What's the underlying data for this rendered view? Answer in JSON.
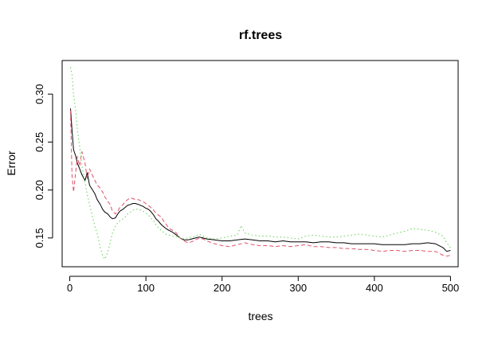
{
  "chart_data": {
    "type": "line",
    "title": "rf.trees",
    "xlabel": "trees",
    "ylabel": "Error",
    "xlim": [
      -10,
      510
    ],
    "ylim": [
      0.12,
      0.335
    ],
    "xticks": [
      0,
      100,
      200,
      300,
      400,
      500
    ],
    "yticks": [
      0.15,
      0.2,
      0.25,
      0.3
    ],
    "ytick_labels": [
      "0.15",
      "0.20",
      "0.25",
      "0.30"
    ],
    "grid": false,
    "legend": "none",
    "series": [
      {
        "color": "#000000",
        "line_style": "solid",
        "points": [
          [
            1,
            0.285
          ],
          [
            3,
            0.262
          ],
          [
            5,
            0.242
          ],
          [
            8,
            0.235
          ],
          [
            10,
            0.228
          ],
          [
            13,
            0.222
          ],
          [
            16,
            0.216
          ],
          [
            20,
            0.21
          ],
          [
            23,
            0.218
          ],
          [
            26,
            0.205
          ],
          [
            30,
            0.2
          ],
          [
            33,
            0.196
          ],
          [
            36,
            0.19
          ],
          [
            40,
            0.185
          ],
          [
            43,
            0.18
          ],
          [
            46,
            0.177
          ],
          [
            50,
            0.175
          ],
          [
            53,
            0.172
          ],
          [
            56,
            0.17
          ],
          [
            60,
            0.171
          ],
          [
            63,
            0.175
          ],
          [
            66,
            0.178
          ],
          [
            70,
            0.18
          ],
          [
            73,
            0.182
          ],
          [
            76,
            0.184
          ],
          [
            80,
            0.185
          ],
          [
            83,
            0.186
          ],
          [
            86,
            0.186
          ],
          [
            90,
            0.185
          ],
          [
            93,
            0.184
          ],
          [
            96,
            0.183
          ],
          [
            100,
            0.181
          ],
          [
            103,
            0.18
          ],
          [
            106,
            0.178
          ],
          [
            110,
            0.174
          ],
          [
            113,
            0.17
          ],
          [
            116,
            0.168
          ],
          [
            120,
            0.164
          ],
          [
            123,
            0.162
          ],
          [
            126,
            0.16
          ],
          [
            130,
            0.158
          ],
          [
            135,
            0.156
          ],
          [
            140,
            0.153
          ],
          [
            145,
            0.15
          ],
          [
            150,
            0.148
          ],
          [
            155,
            0.148
          ],
          [
            160,
            0.149
          ],
          [
            165,
            0.15
          ],
          [
            170,
            0.151
          ],
          [
            175,
            0.15
          ],
          [
            180,
            0.149
          ],
          [
            190,
            0.148
          ],
          [
            200,
            0.147
          ],
          [
            210,
            0.147
          ],
          [
            220,
            0.148
          ],
          [
            230,
            0.149
          ],
          [
            240,
            0.148
          ],
          [
            250,
            0.147
          ],
          [
            260,
            0.147
          ],
          [
            270,
            0.146
          ],
          [
            280,
            0.147
          ],
          [
            290,
            0.146
          ],
          [
            300,
            0.146
          ],
          [
            310,
            0.146
          ],
          [
            320,
            0.145
          ],
          [
            330,
            0.146
          ],
          [
            340,
            0.146
          ],
          [
            350,
            0.145
          ],
          [
            360,
            0.145
          ],
          [
            370,
            0.144
          ],
          [
            380,
            0.144
          ],
          [
            390,
            0.144
          ],
          [
            400,
            0.144
          ],
          [
            410,
            0.143
          ],
          [
            420,
            0.143
          ],
          [
            430,
            0.143
          ],
          [
            440,
            0.143
          ],
          [
            450,
            0.144
          ],
          [
            460,
            0.144
          ],
          [
            470,
            0.145
          ],
          [
            480,
            0.144
          ],
          [
            490,
            0.14
          ],
          [
            495,
            0.136
          ],
          [
            500,
            0.137
          ]
        ]
      },
      {
        "color": "#DF536B",
        "line_style": "dashed",
        "points": [
          [
            1,
            0.283
          ],
          [
            3,
            0.215
          ],
          [
            5,
            0.198
          ],
          [
            8,
            0.22
          ],
          [
            10,
            0.235
          ],
          [
            13,
            0.225
          ],
          [
            16,
            0.24
          ],
          [
            20,
            0.228
          ],
          [
            23,
            0.212
          ],
          [
            26,
            0.222
          ],
          [
            30,
            0.215
          ],
          [
            33,
            0.21
          ],
          [
            36,
            0.205
          ],
          [
            40,
            0.202
          ],
          [
            43,
            0.198
          ],
          [
            46,
            0.193
          ],
          [
            50,
            0.188
          ],
          [
            53,
            0.185
          ],
          [
            56,
            0.178
          ],
          [
            60,
            0.175
          ],
          [
            63,
            0.178
          ],
          [
            66,
            0.182
          ],
          [
            70,
            0.185
          ],
          [
            73,
            0.188
          ],
          [
            76,
            0.19
          ],
          [
            80,
            0.192
          ],
          [
            83,
            0.191
          ],
          [
            86,
            0.19
          ],
          [
            90,
            0.19
          ],
          [
            93,
            0.189
          ],
          [
            96,
            0.188
          ],
          [
            100,
            0.186
          ],
          [
            103,
            0.184
          ],
          [
            106,
            0.182
          ],
          [
            110,
            0.179
          ],
          [
            113,
            0.176
          ],
          [
            116,
            0.174
          ],
          [
            120,
            0.172
          ],
          [
            123,
            0.168
          ],
          [
            126,
            0.165
          ],
          [
            130,
            0.16
          ],
          [
            135,
            0.158
          ],
          [
            140,
            0.155
          ],
          [
            145,
            0.15
          ],
          [
            150,
            0.147
          ],
          [
            155,
            0.145
          ],
          [
            160,
            0.146
          ],
          [
            165,
            0.148
          ],
          [
            170,
            0.15
          ],
          [
            175,
            0.149
          ],
          [
            180,
            0.147
          ],
          [
            190,
            0.144
          ],
          [
            200,
            0.142
          ],
          [
            210,
            0.141
          ],
          [
            220,
            0.143
          ],
          [
            230,
            0.145
          ],
          [
            240,
            0.143
          ],
          [
            250,
            0.142
          ],
          [
            260,
            0.142
          ],
          [
            270,
            0.141
          ],
          [
            280,
            0.142
          ],
          [
            290,
            0.141
          ],
          [
            300,
            0.142
          ],
          [
            310,
            0.143
          ],
          [
            320,
            0.141
          ],
          [
            330,
            0.141
          ],
          [
            340,
            0.14
          ],
          [
            350,
            0.14
          ],
          [
            360,
            0.139
          ],
          [
            370,
            0.139
          ],
          [
            380,
            0.138
          ],
          [
            390,
            0.138
          ],
          [
            400,
            0.137
          ],
          [
            410,
            0.136
          ],
          [
            420,
            0.137
          ],
          [
            430,
            0.137
          ],
          [
            440,
            0.136
          ],
          [
            450,
            0.137
          ],
          [
            460,
            0.137
          ],
          [
            470,
            0.136
          ],
          [
            480,
            0.136
          ],
          [
            490,
            0.132
          ],
          [
            495,
            0.131
          ],
          [
            500,
            0.132
          ]
        ]
      },
      {
        "color": "#61D04F",
        "line_style": "dotted",
        "points": [
          [
            1,
            0.328
          ],
          [
            3,
            0.32
          ],
          [
            5,
            0.3
          ],
          [
            8,
            0.282
          ],
          [
            10,
            0.262
          ],
          [
            13,
            0.245
          ],
          [
            16,
            0.225
          ],
          [
            20,
            0.208
          ],
          [
            23,
            0.195
          ],
          [
            26,
            0.185
          ],
          [
            30,
            0.172
          ],
          [
            33,
            0.162
          ],
          [
            36,
            0.155
          ],
          [
            40,
            0.14
          ],
          [
            43,
            0.132
          ],
          [
            46,
            0.128
          ],
          [
            50,
            0.135
          ],
          [
            53,
            0.145
          ],
          [
            56,
            0.155
          ],
          [
            60,
            0.162
          ],
          [
            63,
            0.166
          ],
          [
            66,
            0.168
          ],
          [
            70,
            0.17
          ],
          [
            73,
            0.172
          ],
          [
            76,
            0.175
          ],
          [
            80,
            0.177
          ],
          [
            83,
            0.179
          ],
          [
            86,
            0.18
          ],
          [
            90,
            0.18
          ],
          [
            93,
            0.179
          ],
          [
            96,
            0.178
          ],
          [
            100,
            0.176
          ],
          [
            103,
            0.174
          ],
          [
            106,
            0.171
          ],
          [
            110,
            0.168
          ],
          [
            113,
            0.164
          ],
          [
            116,
            0.161
          ],
          [
            120,
            0.158
          ],
          [
            123,
            0.156
          ],
          [
            126,
            0.154
          ],
          [
            130,
            0.153
          ],
          [
            135,
            0.152
          ],
          [
            140,
            0.151
          ],
          [
            145,
            0.15
          ],
          [
            150,
            0.149
          ],
          [
            155,
            0.15
          ],
          [
            160,
            0.151
          ],
          [
            165,
            0.152
          ],
          [
            170,
            0.154
          ],
          [
            175,
            0.152
          ],
          [
            180,
            0.15
          ],
          [
            190,
            0.149
          ],
          [
            200,
            0.15
          ],
          [
            210,
            0.152
          ],
          [
            220,
            0.153
          ],
          [
            225,
            0.163
          ],
          [
            230,
            0.155
          ],
          [
            240,
            0.153
          ],
          [
            250,
            0.152
          ],
          [
            260,
            0.152
          ],
          [
            270,
            0.151
          ],
          [
            280,
            0.151
          ],
          [
            290,
            0.15
          ],
          [
            300,
            0.149
          ],
          [
            310,
            0.152
          ],
          [
            320,
            0.153
          ],
          [
            330,
            0.152
          ],
          [
            340,
            0.151
          ],
          [
            350,
            0.151
          ],
          [
            360,
            0.152
          ],
          [
            370,
            0.153
          ],
          [
            380,
            0.154
          ],
          [
            390,
            0.153
          ],
          [
            400,
            0.152
          ],
          [
            410,
            0.151
          ],
          [
            420,
            0.153
          ],
          [
            430,
            0.155
          ],
          [
            440,
            0.157
          ],
          [
            450,
            0.16
          ],
          [
            460,
            0.159
          ],
          [
            470,
            0.158
          ],
          [
            480,
            0.156
          ],
          [
            490,
            0.152
          ],
          [
            495,
            0.145
          ],
          [
            500,
            0.14
          ]
        ]
      }
    ]
  }
}
